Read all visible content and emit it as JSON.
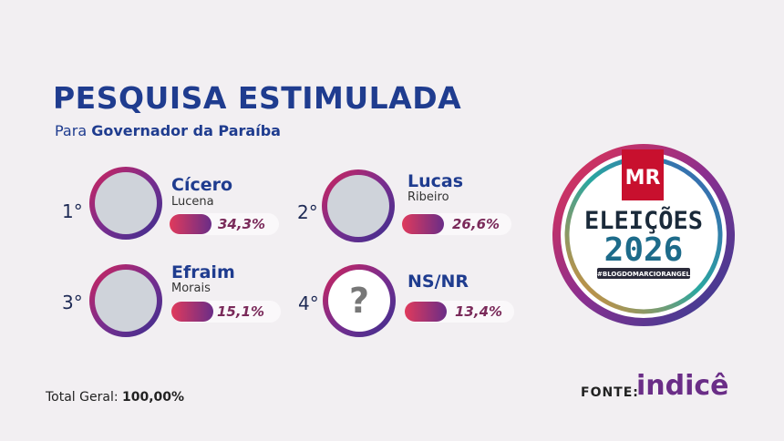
{
  "header": {
    "title": "PESQUISA ESTIMULADA",
    "subtitle_prefix": "Para",
    "subtitle": "Governador da Paraíba"
  },
  "candidates": [
    {
      "rank": "1°",
      "name": "Cícero",
      "surname": "Lucena",
      "percent": "34,3%"
    },
    {
      "rank": "2°",
      "name": "Lucas",
      "surname": "Ribeiro",
      "percent": "26,6%"
    },
    {
      "rank": "3°",
      "name": "Efraim",
      "surname": "Morais",
      "percent": "15,1%"
    },
    {
      "rank": "4°",
      "name": "NS/NR",
      "photo_text": "?",
      "percent": "13,4%"
    }
  ],
  "logo": {
    "brand": "MR",
    "line1": "ELEIÇÕES",
    "line2": "2026",
    "tag": "#BLOGDOMARCIORANGEL"
  },
  "footer": {
    "total_label": "Total Geral:",
    "total": "100,00%",
    "source_label": "FONTE:",
    "source": "indicê"
  }
}
